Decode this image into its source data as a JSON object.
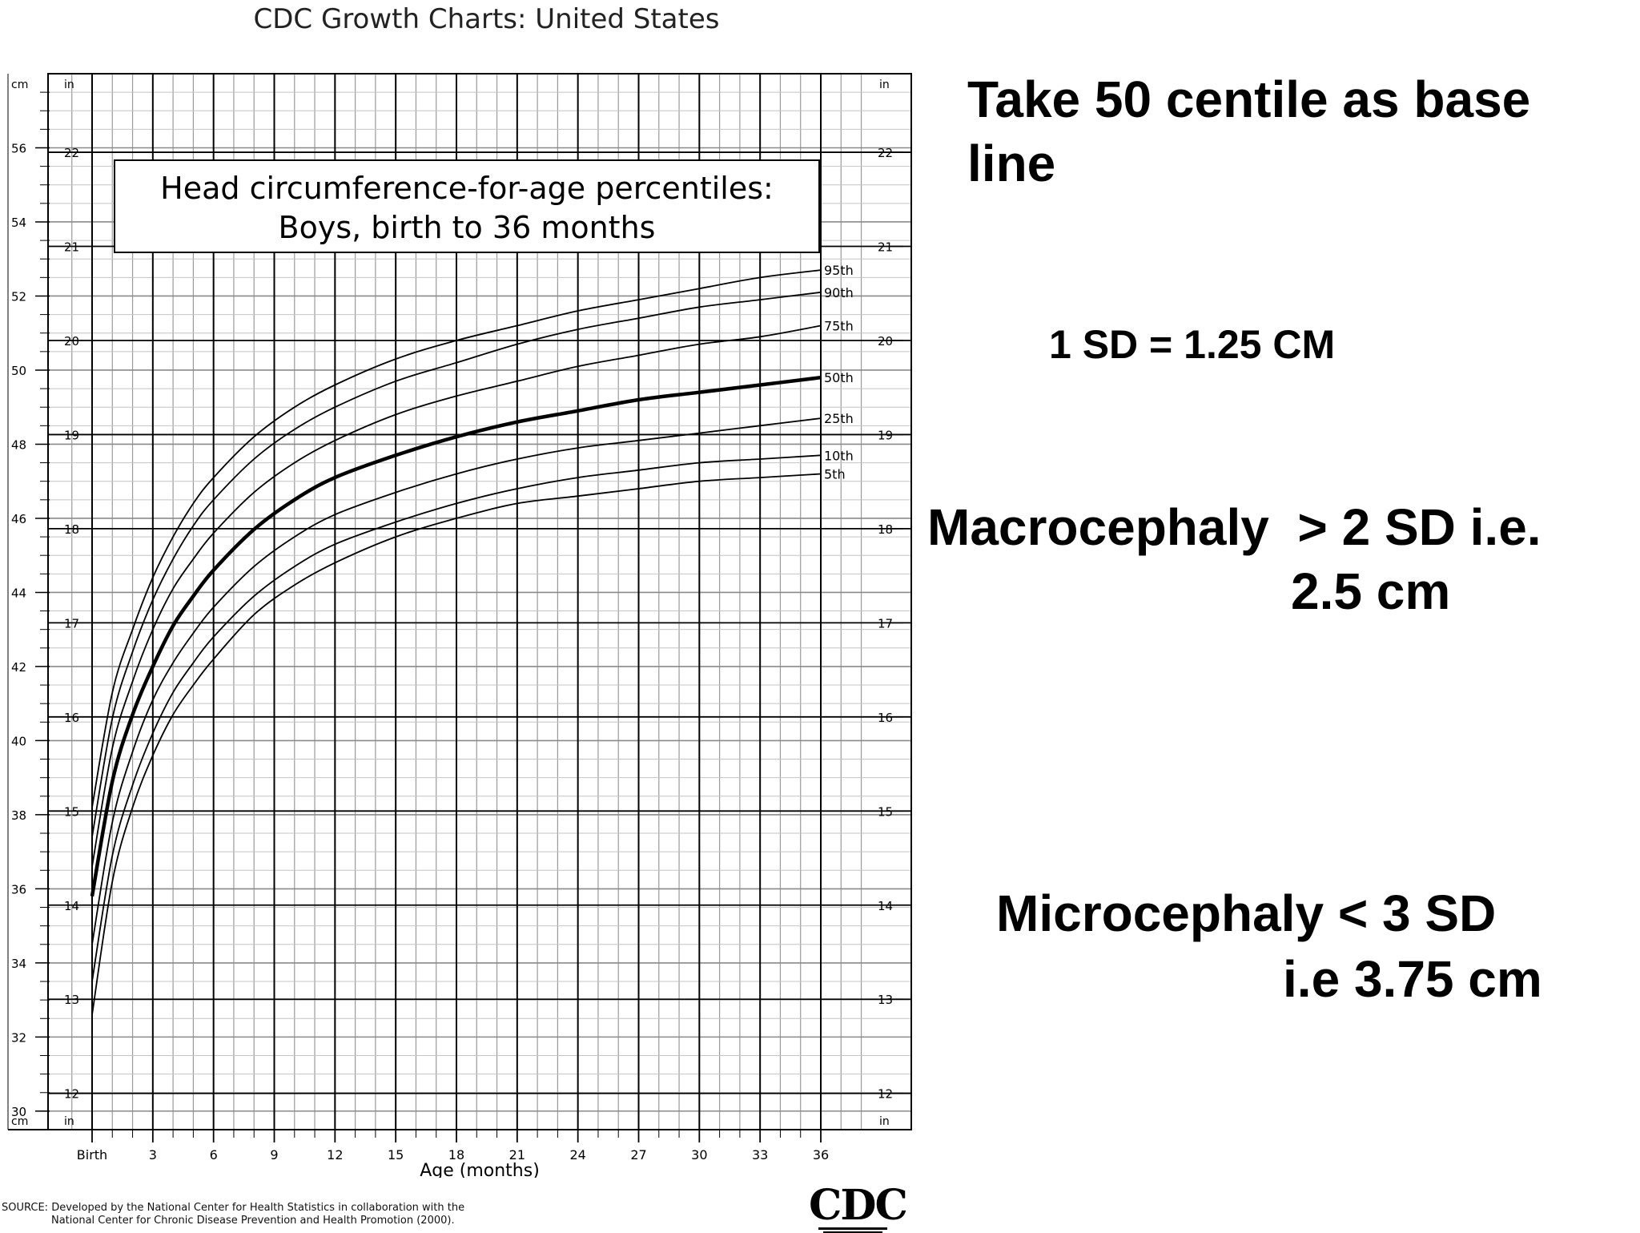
{
  "header": {
    "title": "CDC Growth Charts: United States"
  },
  "notes": {
    "baseline": "Take 50 centile as base\nline",
    "sd": "1 SD = 1.25 CM",
    "macrocephaly_line1": "Macrocephaly  > 2 SD i.e.",
    "macrocephaly_line2": "2.5 cm",
    "microcephaly_line1": "Microcephaly < 3 SD",
    "microcephaly_line2": "i.e 3.75 cm"
  },
  "footer": {
    "source": "SOURCE: Developed by the National Center for Health Statistics in collaboration with the\n               National Center for Chronic Disease Prevention and Health Promotion (2000).",
    "logo": "CDC"
  },
  "chart_data": {
    "type": "line",
    "title": "Head circumference-for-age percentiles:",
    "subtitle": "Boys, birth to 36 months",
    "xlabel": "Age (months)",
    "ylabel_left_unit_top": "cm",
    "ylabel_left_unit_bottom": "cm",
    "inch_unit_top": "in",
    "inch_unit_bottom": "in",
    "xlim": [
      0,
      36
    ],
    "ylim_cm": [
      29.5,
      58
    ],
    "x_ticks": [
      {
        "value": 0,
        "label": "Birth"
      },
      {
        "value": 3,
        "label": "3"
      },
      {
        "value": 6,
        "label": "6"
      },
      {
        "value": 9,
        "label": "9"
      },
      {
        "value": 12,
        "label": "12"
      },
      {
        "value": 15,
        "label": "15"
      },
      {
        "value": 18,
        "label": "18"
      },
      {
        "value": 21,
        "label": "21"
      },
      {
        "value": 24,
        "label": "24"
      },
      {
        "value": 27,
        "label": "27"
      },
      {
        "value": 30,
        "label": "30"
      },
      {
        "value": 33,
        "label": "33"
      },
      {
        "value": 36,
        "label": "36"
      }
    ],
    "y_ticks_cm": [
      30,
      32,
      34,
      36,
      38,
      40,
      42,
      44,
      46,
      48,
      50,
      52,
      54,
      56
    ],
    "y_ticks_in": [
      12,
      13,
      14,
      15,
      16,
      17,
      18,
      19,
      20,
      21,
      22
    ],
    "x": [
      0,
      1,
      2,
      3,
      4,
      5,
      6,
      8,
      10,
      12,
      15,
      18,
      21,
      24,
      27,
      30,
      33,
      36
    ],
    "series": [
      {
        "name": "95th",
        "values": [
          38.2,
          41.3,
          43.0,
          44.4,
          45.5,
          46.4,
          47.1,
          48.2,
          49.0,
          49.6,
          50.3,
          50.8,
          51.2,
          51.6,
          51.9,
          52.2,
          52.5,
          52.7
        ]
      },
      {
        "name": "90th",
        "values": [
          37.4,
          40.6,
          42.4,
          43.8,
          44.9,
          45.8,
          46.5,
          47.6,
          48.4,
          49.0,
          49.7,
          50.2,
          50.7,
          51.1,
          51.4,
          51.7,
          51.9,
          52.1
        ]
      },
      {
        "name": "75th",
        "values": [
          36.6,
          39.8,
          41.6,
          43.0,
          44.1,
          44.9,
          45.6,
          46.7,
          47.5,
          48.1,
          48.8,
          49.3,
          49.7,
          50.1,
          50.4,
          50.7,
          50.9,
          51.2
        ]
      },
      {
        "name": "50th",
        "values": [
          35.8,
          38.9,
          40.7,
          42.0,
          43.1,
          43.9,
          44.6,
          45.7,
          46.5,
          47.1,
          47.7,
          48.2,
          48.6,
          48.9,
          49.2,
          49.4,
          49.6,
          49.8
        ]
      },
      {
        "name": "25th",
        "values": [
          34.5,
          37.8,
          39.7,
          41.1,
          42.1,
          42.9,
          43.6,
          44.7,
          45.5,
          46.1,
          46.7,
          47.2,
          47.6,
          47.9,
          48.1,
          48.3,
          48.5,
          48.7
        ]
      },
      {
        "name": "10th",
        "values": [
          33.5,
          36.9,
          38.8,
          40.2,
          41.3,
          42.1,
          42.8,
          43.9,
          44.7,
          45.3,
          45.9,
          46.4,
          46.8,
          47.1,
          47.3,
          47.5,
          47.6,
          47.7
        ]
      },
      {
        "name": "5th",
        "values": [
          32.6,
          36.2,
          38.2,
          39.6,
          40.7,
          41.5,
          42.2,
          43.4,
          44.2,
          44.8,
          45.5,
          46.0,
          46.4,
          46.6,
          46.8,
          47.0,
          47.1,
          47.2
        ]
      }
    ],
    "emphasized_series": "50th",
    "grid": true,
    "legend": "curve labels at right end"
  }
}
